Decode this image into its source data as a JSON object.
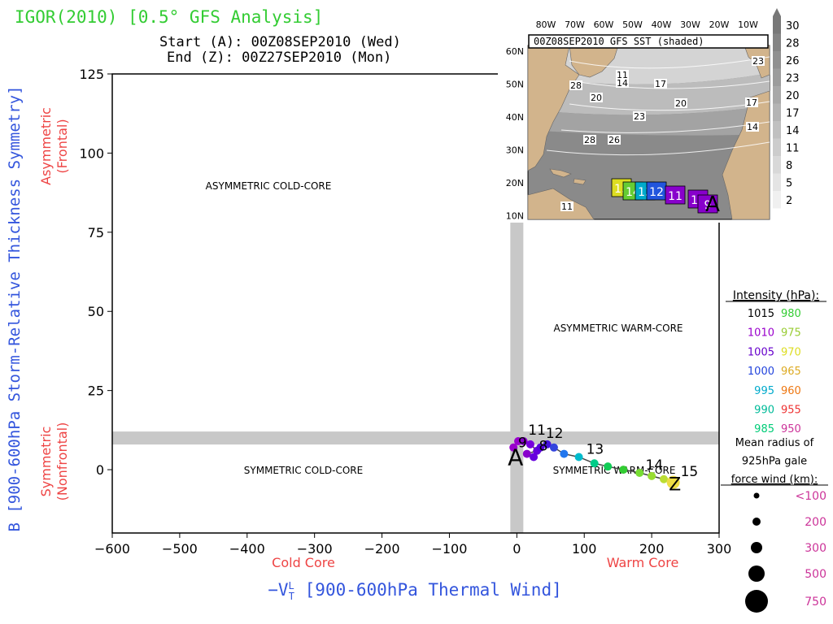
{
  "header": {
    "title": "IGOR(2010) [0.5° GFS Analysis]",
    "start": "Start (A): 00Z08SEP2010 (Wed)",
    "end": "End  (Z): 00Z27SEP2010 (Mon)"
  },
  "colors": {
    "title": "#33cc33",
    "axis_title": "#3355dd",
    "region_label": "#ee4444",
    "gray_band": "#c8c8c8",
    "scale_text": "#cc3399"
  },
  "chart_data": {
    "type": "scatter",
    "title": "IGOR(2010) [0.5° GFS Analysis]",
    "xlabel": "-VT^L [900-600hPa Thermal Wind]",
    "ylabel": "B [900-600hPa Storm-Relative Thickness Symmetry]",
    "xlim": [
      -600,
      300
    ],
    "ylim": [
      -20,
      125
    ],
    "xticks": [
      -600,
      -500,
      -400,
      -300,
      -200,
      -100,
      0,
      100,
      200,
      300
    ],
    "yticks": [
      0,
      25,
      50,
      75,
      100,
      125
    ],
    "x_side_labels": {
      "left": "Cold Core",
      "right": "Warm Core"
    },
    "y_side_labels": {
      "top": [
        "Asymmetric",
        "(Frontal)"
      ],
      "bottom": [
        "Symmetric",
        "(Nonfrontal)"
      ]
    },
    "quadrant_labels": [
      "ASYMMETRIC COLD-CORE",
      "ASYMMETRIC WARM-CORE",
      "SYMMETRIC COLD-CORE",
      "SYMMETRIC WARM-CORE"
    ],
    "band_b": 10,
    "band_vt": 0,
    "track": [
      {
        "x": -5,
        "y": 7,
        "color": "#9900cc",
        "size": 1
      },
      {
        "x": 2,
        "y": 9,
        "color": "#9900cc",
        "size": 1
      },
      {
        "x": 10,
        "y": 9,
        "color": "#8800cc",
        "size": 1
      },
      {
        "x": 20,
        "y": 8,
        "color": "#7700dd",
        "size": 1
      },
      {
        "x": 30,
        "y": 6,
        "color": "#6600dd",
        "size": 1
      },
      {
        "x": 15,
        "y": 5,
        "color": "#8800cc",
        "size": 1
      },
      {
        "x": 25,
        "y": 4,
        "color": "#6600dd",
        "size": 1
      },
      {
        "x": 35,
        "y": 7,
        "color": "#5500dd",
        "size": 1
      },
      {
        "x": 45,
        "y": 8,
        "color": "#4411dd",
        "size": 1
      },
      {
        "x": 55,
        "y": 7,
        "color": "#3344dd",
        "size": 1
      },
      {
        "x": 70,
        "y": 5,
        "color": "#2277ee",
        "size": 1
      },
      {
        "x": 92,
        "y": 4,
        "color": "#00bbcc",
        "size": 1
      },
      {
        "x": 115,
        "y": 2,
        "color": "#00cc88",
        "size": 1
      },
      {
        "x": 135,
        "y": 1,
        "color": "#11cc55",
        "size": 1
      },
      {
        "x": 158,
        "y": 0,
        "color": "#33cc33",
        "size": 1
      },
      {
        "x": 182,
        "y": -1,
        "color": "#77dd33",
        "size": 1
      },
      {
        "x": 200,
        "y": -2,
        "color": "#99dd33",
        "size": 1
      },
      {
        "x": 218,
        "y": -3,
        "color": "#bbdd33",
        "size": 1
      },
      {
        "x": 232,
        "y": -4,
        "color": "#eedd44",
        "size": 2
      }
    ],
    "track_labels": [
      {
        "text": "11",
        "x": 12,
        "y": 10
      },
      {
        "text": "12",
        "x": 38,
        "y": 9
      },
      {
        "text": "13",
        "x": 98,
        "y": 4
      },
      {
        "text": "14",
        "x": 186,
        "y": -1
      },
      {
        "text": "15",
        "x": 238,
        "y": -3
      },
      {
        "text": "9",
        "x": -3,
        "y": 6
      },
      {
        "text": "8",
        "x": 28,
        "y": 5
      }
    ],
    "start_marker": {
      "text": "A",
      "x": -2,
      "y": 5
    },
    "end_marker": {
      "text": "Z",
      "x": 232,
      "y": -4
    }
  },
  "inset": {
    "title": "00Z08SEP2010 GFS SST (shaded)",
    "lon_labels": [
      "80W",
      "70W",
      "60W",
      "50W",
      "40W",
      "30W",
      "20W",
      "10W"
    ],
    "lat_labels": [
      "60N",
      "50N",
      "40N",
      "30N",
      "20N",
      "10N"
    ],
    "sst_labels": [
      "11",
      "14",
      "17",
      "20",
      "23",
      "26",
      "28",
      "17",
      "14",
      "23",
      "20",
      "28",
      "11"
    ],
    "sst_scale": [
      "30",
      "28",
      "26",
      "23",
      "20",
      "17",
      "14",
      "11",
      "8",
      "5",
      "2"
    ],
    "track_boxes": [
      {
        "text": "15",
        "color": "#dddd22"
      },
      {
        "text": "14",
        "color": "#66cc33"
      },
      {
        "text": "13",
        "color": "#00aacc"
      },
      {
        "text": "12",
        "color": "#2255dd"
      },
      {
        "text": "11",
        "color": "#8800cc"
      },
      {
        "text": "10",
        "color": "#8800cc"
      },
      {
        "text": "9",
        "color": "#8800cc"
      }
    ],
    "start_marker": "A"
  },
  "intensity_legend": {
    "title": "Intensity (hPa):",
    "rows": [
      {
        "left": "1015",
        "left_color": "#000000",
        "right": "980",
        "right_color": "#33cc33"
      },
      {
        "left": "1010",
        "left_color": "#9900cc",
        "right": "975",
        "right_color": "#99cc33"
      },
      {
        "left": "1005",
        "left_color": "#6600cc",
        "right": "970",
        "right_color": "#dddd22"
      },
      {
        "left": "1000",
        "left_color": "#2244dd",
        "right": "965",
        "right_color": "#ddaa22"
      },
      {
        "left": "995",
        "left_color": "#00aacc",
        "right": "960",
        "right_color": "#ee7711"
      },
      {
        "left": "990",
        "left_color": "#00bb99",
        "right": "955",
        "right_color": "#ee3333"
      },
      {
        "left": "985",
        "left_color": "#00cc77",
        "right": "950",
        "right_color": "#cc3399"
      }
    ]
  },
  "radius_legend": {
    "title_lines": [
      "Mean radius of",
      "925hPa gale",
      "force wind (km):"
    ],
    "items": [
      {
        "label": "<100",
        "size": 1
      },
      {
        "label": "200",
        "size": 2
      },
      {
        "label": "300",
        "size": 3
      },
      {
        "label": "500",
        "size": 4
      },
      {
        "label": "750",
        "size": 5
      }
    ]
  }
}
